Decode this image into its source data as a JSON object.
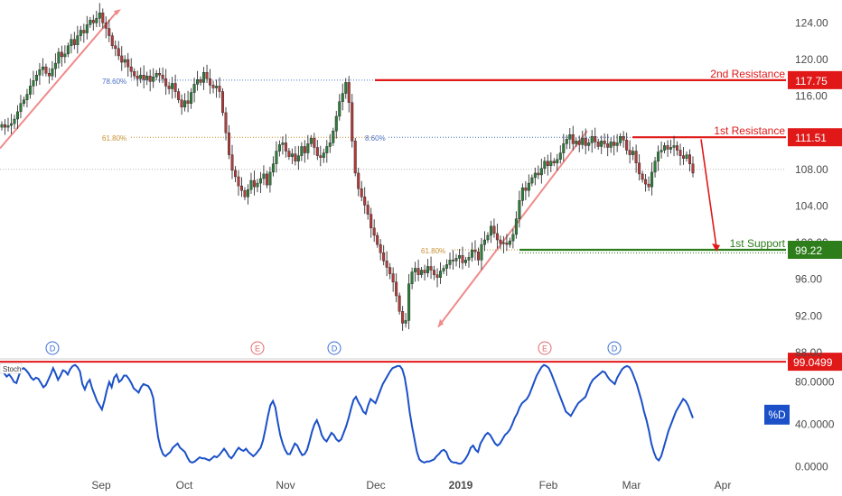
{
  "chart_data": {
    "type": "candlestick",
    "price_axis": {
      "ticks": [
        "124.00",
        "120.00",
        "116.00",
        "112.00",
        "108.00",
        "104.00",
        "100.00",
        "96.00",
        "92.00",
        "88.00"
      ],
      "range": [
        87.5,
        126.5
      ],
      "grid": false
    },
    "x_axis": {
      "labels": [
        "Sep",
        "Oct",
        "Nov",
        "Dec",
        "2019",
        "Feb",
        "Mar",
        "Apr"
      ],
      "bold_label": "2019",
      "range_days": [
        0,
        245
      ],
      "label_days": [
        112,
        204,
        316,
        416,
        510,
        607,
        699,
        800
      ]
    },
    "candles_close": [
      112.9,
      112.6,
      112.8,
      113.0,
      113.5,
      114.3,
      115.2,
      115.6,
      116.2,
      117.1,
      117.7,
      118.3,
      118.9,
      119.2,
      118.5,
      118.2,
      119.0,
      119.6,
      120.8,
      120.3,
      120.6,
      121.5,
      122.2,
      121.6,
      122.6,
      123.2,
      122.9,
      123.8,
      124.3,
      124.0,
      124.5,
      125.1,
      124.0,
      123.4,
      122.6,
      121.5,
      121.2,
      120.4,
      119.7,
      120.0,
      119.2,
      118.7,
      118.2,
      117.9,
      118.3,
      117.8,
      118.2,
      117.6,
      118.1,
      118.5,
      118.3,
      117.9,
      117.1,
      116.8,
      117.4,
      116.5,
      115.6,
      114.8,
      115.5,
      115.2,
      116.4,
      117.3,
      117.8,
      117.5,
      118.6,
      117.9,
      117.2,
      116.9,
      117.1,
      116.5,
      114.2,
      112.0,
      109.6,
      107.9,
      107.2,
      106.2,
      105.7,
      105.0,
      105.8,
      106.8,
      106.1,
      106.5,
      107.0,
      107.5,
      106.3,
      107.7,
      108.6,
      110.0,
      110.7,
      110.9,
      110.0,
      109.4,
      109.7,
      108.9,
      109.5,
      110.5,
      109.8,
      110.8,
      111.4,
      110.4,
      109.5,
      109.3,
      109.8,
      110.5,
      110.9,
      112.2,
      113.8,
      115.4,
      116.3,
      117.5,
      115.3,
      111.1,
      107.6,
      105.9,
      105.0,
      104.1,
      103.1,
      101.6,
      100.8,
      99.8,
      98.9,
      98.0,
      97.3,
      96.6,
      95.7,
      94.2,
      92.5,
      91.2,
      91.5,
      95.5,
      96.8,
      97.2,
      96.5,
      97.0,
      96.7,
      97.4,
      97.0,
      96.5,
      96.2,
      96.9,
      97.2,
      97.6,
      98.1,
      98.0,
      98.3,
      98.6,
      97.8,
      98.1,
      98.4,
      99.2,
      99.0,
      98.1,
      99.8,
      100.3,
      100.8,
      101.8,
      101.0,
      100.3,
      99.9,
      100.0,
      99.8,
      100.2,
      100.9,
      102.6,
      104.6,
      106.0,
      105.7,
      106.5,
      107.1,
      107.6,
      107.4,
      108.1,
      108.9,
      108.4,
      108.9,
      108.7,
      109.1,
      109.8,
      110.8,
      111.3,
      111.8,
      110.8,
      111.1,
      110.7,
      111.4,
      110.6,
      110.9,
      111.6,
      111.0,
      110.5,
      111.1,
      110.8,
      110.4,
      111.0,
      110.6,
      110.9,
      111.6,
      111.2,
      110.1,
      109.6,
      110.0,
      108.7,
      107.5,
      106.9,
      106.4,
      106.1,
      107.7,
      108.9,
      109.9,
      110.1,
      110.6,
      110.2,
      110.4,
      110.6,
      110.1,
      109.5,
      109.2,
      109.6,
      108.6,
      107.6
    ],
    "horizontal_levels": [
      {
        "name": "2nd Resistance",
        "value": 117.75,
        "label": "117.75",
        "color": "#e01818"
      },
      {
        "name": "1st Resistance",
        "value": 111.51,
        "label": "111.51",
        "color": "#e01818"
      },
      {
        "name": "1st Support",
        "value": 99.22,
        "label": "99.22",
        "color": "#2e7d1b"
      }
    ],
    "current_price": 108.0,
    "fibonacci_labels": [
      {
        "text": "78.60%",
        "color": "#4a6fc2"
      },
      {
        "text": "61.80%",
        "color": "#c8902f"
      },
      {
        "text": "8.60%",
        "color": "#4a6fc2"
      },
      {
        "text": "61.80%",
        "color": "#c8902f"
      }
    ],
    "event_markers": [
      "D",
      "E",
      "D",
      "E",
      "D"
    ],
    "oscillator": {
      "name": "Stoch",
      "ticks": [
        "80.0000",
        "40.0000",
        "0.0000"
      ],
      "range": [
        -2,
        100
      ],
      "level_value": 99.0499,
      "level_label": "99.0499",
      "badge": "%D",
      "values": [
        91,
        88,
        85,
        87,
        84,
        80,
        79,
        86,
        92,
        93,
        91,
        88,
        84,
        82,
        84,
        83,
        79,
        75,
        77,
        82,
        87,
        93,
        88,
        82,
        86,
        91,
        90,
        87,
        92,
        95,
        96,
        94,
        90,
        78,
        73,
        79,
        82,
        74,
        68,
        62,
        58,
        54,
        62,
        72,
        80,
        75,
        84,
        87,
        80,
        82,
        86,
        86,
        83,
        79,
        74,
        72,
        70,
        75,
        78,
        77,
        76,
        72,
        65,
        45,
        28,
        18,
        12,
        10,
        12,
        14,
        18,
        20,
        22,
        18,
        16,
        14,
        9,
        5,
        4,
        5,
        7,
        9,
        8,
        8,
        7,
        6,
        8,
        10,
        9,
        11,
        14,
        17,
        14,
        10,
        8,
        11,
        15,
        18,
        16,
        15,
        17,
        14,
        12,
        10,
        12,
        15,
        18,
        25,
        36,
        48,
        58,
        62,
        56,
        42,
        30,
        22,
        16,
        12,
        12,
        17,
        22,
        20,
        15,
        11,
        12,
        16,
        24,
        33,
        40,
        44,
        38,
        30,
        26,
        24,
        28,
        32,
        30,
        26,
        24,
        26,
        32,
        38,
        46,
        55,
        63,
        66,
        61,
        57,
        52,
        50,
        58,
        64,
        62,
        60,
        66,
        72,
        78,
        82,
        86,
        90,
        93,
        94,
        95,
        95,
        92,
        84,
        70,
        52,
        38,
        26,
        14,
        7,
        5,
        4,
        5,
        5,
        6,
        7,
        10,
        12,
        15,
        16,
        14,
        8,
        5,
        4,
        4,
        3,
        3,
        5,
        8,
        12,
        18,
        20,
        16,
        14,
        22,
        26,
        30,
        32,
        30,
        26,
        22,
        20,
        22,
        26,
        30,
        32,
        35,
        40,
        46,
        50,
        56,
        60,
        62,
        64,
        68,
        74,
        80,
        86,
        90,
        94,
        96,
        95,
        93,
        88,
        82,
        76,
        70,
        64,
        58,
        52,
        50,
        48,
        52,
        56,
        60,
        62,
        64,
        66,
        72,
        78,
        82,
        84,
        86,
        88,
        90,
        89,
        85,
        82,
        80,
        78,
        84,
        88,
        92,
        94,
        95,
        94,
        90,
        84,
        78,
        70,
        62,
        52,
        44,
        34,
        22,
        14,
        8,
        6,
        10,
        18,
        26,
        34,
        40,
        46,
        52,
        56,
        60,
        64,
        62,
        58,
        52,
        46
      ]
    }
  }
}
